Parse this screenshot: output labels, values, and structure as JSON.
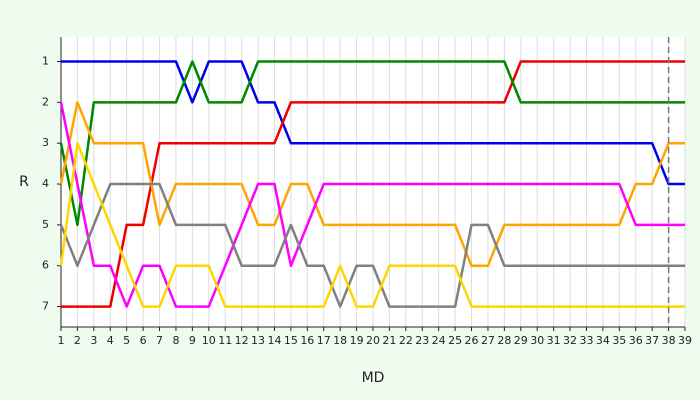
{
  "chart_data": {
    "type": "line",
    "x_label": "MD",
    "y_label": "R",
    "x": [
      1,
      2,
      3,
      4,
      5,
      6,
      7,
      8,
      9,
      10,
      11,
      12,
      13,
      14,
      15,
      16,
      17,
      18,
      19,
      20,
      21,
      22,
      23,
      24,
      25,
      26,
      27,
      28,
      29,
      30,
      31,
      32,
      33,
      34,
      35,
      36,
      37,
      38,
      39
    ],
    "xlim": [
      1,
      39
    ],
    "xticks": [
      1,
      2,
      3,
      4,
      5,
      6,
      7,
      8,
      9,
      10,
      11,
      12,
      13,
      14,
      15,
      16,
      17,
      18,
      19,
      20,
      21,
      22,
      23,
      24,
      25,
      26,
      27,
      28,
      29,
      30,
      31,
      32,
      33,
      34,
      35,
      36,
      37,
      38,
      39
    ],
    "ylim": [
      7.5,
      0.4
    ],
    "yticks": [
      1,
      2,
      3,
      4,
      5,
      6,
      7
    ],
    "grid": "x",
    "vline": 38,
    "series": [
      {
        "color": "#0000ee",
        "values": [
          1,
          1,
          1,
          1,
          1,
          1,
          1,
          1,
          2,
          1,
          1,
          1,
          2,
          2,
          3,
          3,
          3,
          3,
          3,
          3,
          3,
          3,
          3,
          3,
          3,
          3,
          3,
          3,
          3,
          3,
          3,
          3,
          3,
          3,
          3,
          3,
          3,
          4,
          4
        ]
      },
      {
        "color": "#ee0000",
        "values": [
          7,
          7,
          7,
          7,
          5,
          5,
          3,
          3,
          3,
          3,
          3,
          3,
          3,
          3,
          2,
          2,
          2,
          2,
          2,
          2,
          2,
          2,
          2,
          2,
          2,
          2,
          2,
          2,
          1,
          1,
          1,
          1,
          1,
          1,
          1,
          1,
          1,
          1,
          1
        ]
      },
      {
        "color": "#008800",
        "values": [
          3,
          5,
          2,
          2,
          2,
          2,
          2,
          2,
          1,
          2,
          2,
          2,
          1,
          1,
          1,
          1,
          1,
          1,
          1,
          1,
          1,
          1,
          1,
          1,
          1,
          1,
          1,
          1,
          2,
          2,
          2,
          2,
          2,
          2,
          2,
          2,
          2,
          2,
          2
        ]
      },
      {
        "color": "#ffa500",
        "values": [
          4,
          2,
          3,
          3,
          3,
          3,
          5,
          4,
          4,
          4,
          4,
          4,
          5,
          5,
          4,
          4,
          5,
          5,
          5,
          5,
          5,
          5,
          5,
          5,
          5,
          6,
          6,
          5,
          5,
          5,
          5,
          5,
          5,
          5,
          5,
          4,
          4,
          3,
          3
        ]
      },
      {
        "color": "#ff00ff",
        "values": [
          2,
          4,
          6,
          6,
          7,
          6,
          6,
          7,
          7,
          7,
          6,
          5,
          4,
          4,
          6,
          5,
          4,
          4,
          4,
          4,
          4,
          4,
          4,
          4,
          4,
          4,
          4,
          4,
          4,
          4,
          4,
          4,
          4,
          4,
          4,
          5,
          5,
          5,
          5
        ]
      },
      {
        "color": "#808080",
        "values": [
          5,
          6,
          5,
          4,
          4,
          4,
          4,
          5,
          5,
          5,
          5,
          6,
          6,
          6,
          5,
          6,
          6,
          7,
          6,
          6,
          7,
          7,
          7,
          7,
          7,
          5,
          5,
          6,
          6,
          6,
          6,
          6,
          6,
          6,
          6,
          6,
          6,
          6,
          6
        ]
      },
      {
        "color": "#ffd700",
        "values": [
          6,
          3,
          4,
          5,
          6,
          7,
          7,
          6,
          6,
          6,
          7,
          7,
          7,
          7,
          7,
          7,
          7,
          6,
          7,
          7,
          6,
          6,
          6,
          6,
          6,
          7,
          7,
          7,
          7,
          7,
          7,
          7,
          7,
          7,
          7,
          7,
          7,
          7,
          7
        ]
      }
    ]
  }
}
